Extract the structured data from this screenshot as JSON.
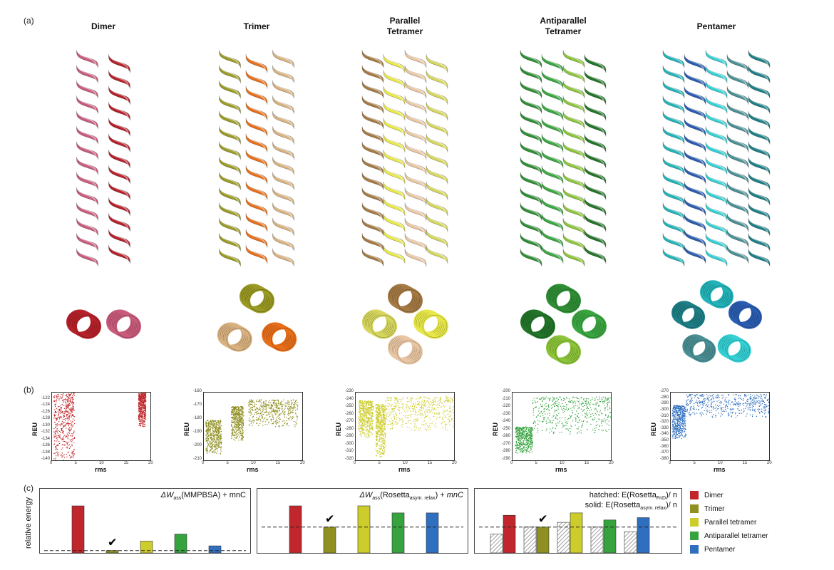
{
  "figure": {
    "panel_a": "(a)",
    "panel_b": "(b)",
    "panel_c": "(c)"
  },
  "structures": [
    {
      "title": "Dimer",
      "colors": [
        "#c95b7c",
        "#b5212a"
      ]
    },
    {
      "title": "Trimer",
      "colors": [
        "#9a9a24",
        "#e86f1a",
        "#d9b280"
      ]
    },
    {
      "title": "Parallel\nTetramer",
      "colors": [
        "#a57a44",
        "#e8e84a",
        "#e9c7a4",
        "#d6d65e"
      ]
    },
    {
      "title": "Antiparallel\nTetramer",
      "colors": [
        "#2f8e35",
        "#3aa640",
        "#8cc43a",
        "#24752a"
      ]
    },
    {
      "title": "Pentamer",
      "colors": [
        "#22b3b8",
        "#2a5cb0",
        "#34d0d4",
        "#4a8f94",
        "#1e7f86"
      ]
    }
  ],
  "scatter_axes": {
    "ylabel": "REU",
    "xlabel": "rms",
    "xticks": [
      "0",
      "5",
      "10",
      "15",
      "20"
    ]
  },
  "chart_data": [
    {
      "type": "scatter",
      "name": "Dimer",
      "color": "#c0262b",
      "xlim": [
        0,
        20
      ],
      "ylim": [
        -140,
        -120
      ],
      "yticks": [
        "-122",
        "-124",
        "-126",
        "-128",
        "-130",
        "-132",
        "-134",
        "-136",
        "-138",
        "-140"
      ],
      "clusters": [
        {
          "x": [
            0.3,
            4.5
          ],
          "y": [
            -140,
            -120
          ]
        },
        {
          "x": [
            17.5,
            19
          ],
          "y": [
            -130,
            -120
          ]
        }
      ]
    },
    {
      "type": "scatter",
      "name": "Trimer",
      "color": "#8f8f22",
      "xlim": [
        0,
        20
      ],
      "ylim": [
        -210,
        -160
      ],
      "yticks": [
        "-160",
        "-170",
        "-180",
        "-190",
        "-200",
        "-210"
      ],
      "clusters": [
        {
          "x": [
            0.3,
            3.5
          ],
          "y": [
            -205,
            -180
          ]
        },
        {
          "x": [
            5.5,
            8
          ],
          "y": [
            -195,
            -170
          ]
        },
        {
          "x": [
            9,
            19
          ],
          "y": [
            -185,
            -165
          ]
        }
      ]
    },
    {
      "type": "scatter",
      "name": "Parallel tetramer",
      "color": "#cccc2a",
      "xlim": [
        0,
        20
      ],
      "ylim": [
        -320,
        -230
      ],
      "yticks": [
        "-230",
        "-240",
        "-250",
        "-260",
        "-270",
        "-280",
        "-290",
        "-300",
        "-310",
        "-320"
      ],
      "clusters": [
        {
          "x": [
            0.5,
            3.5
          ],
          "y": [
            -290,
            -240
          ]
        },
        {
          "x": [
            4,
            6
          ],
          "y": [
            -315,
            -245
          ]
        },
        {
          "x": [
            6,
            20
          ],
          "y": [
            -280,
            -235
          ]
        }
      ]
    },
    {
      "type": "scatter",
      "name": "Antiparallel tetramer",
      "color": "#36a33f",
      "xlim": [
        0,
        20
      ],
      "ylim": [
        -290,
        -200
      ],
      "yticks": [
        "-200",
        "-210",
        "-220",
        "-230",
        "-240",
        "-250",
        "-260",
        "-270",
        "-280",
        "-290"
      ],
      "clusters": [
        {
          "x": [
            0.5,
            4
          ],
          "y": [
            -280,
            -245
          ]
        },
        {
          "x": [
            4,
            20
          ],
          "y": [
            -255,
            -205
          ]
        }
      ]
    },
    {
      "type": "scatter",
      "name": "Pentamer",
      "color": "#2f6fbf",
      "xlim": [
        0,
        20
      ],
      "ylim": [
        -380,
        -270
      ],
      "yticks": [
        "-270",
        "-280",
        "-290",
        "-300",
        "-310",
        "-320",
        "-330",
        "-340",
        "-350",
        "-360",
        "-370",
        "-380"
      ],
      "clusters": [
        {
          "x": [
            0.2,
            3
          ],
          "y": [
            -345,
            -290
          ]
        },
        {
          "x": [
            3,
            20
          ],
          "y": [
            -310,
            -272
          ]
        }
      ]
    },
    {
      "type": "bar",
      "panel": "MMPBSA",
      "categories": [
        "Dimer",
        "Trimer",
        "Parallel tetramer",
        "Antiparallel tetramer",
        "Pentamer"
      ],
      "values": [
        1.0,
        0.05,
        0.25,
        0.4,
        0.15
      ],
      "baseline": 0.05,
      "check": "Trimer"
    },
    {
      "type": "bar",
      "panel": "Rosetta",
      "categories": [
        "Dimer",
        "Trimer",
        "Parallel tetramer",
        "Antiparallel tetramer",
        "Pentamer"
      ],
      "values": [
        1.0,
        0.55,
        1.0,
        0.85,
        0.85
      ],
      "baseline": 0.55,
      "check": "Trimer"
    },
    {
      "type": "bar",
      "panel": "Combined",
      "categories": [
        "Dimer",
        "Trimer",
        "Parallel tetramer",
        "Antiparallel tetramer",
        "Pentamer"
      ],
      "values": [
        0.8,
        0.55,
        0.85,
        0.7,
        0.75
      ],
      "hatched": [
        0.4,
        0.55,
        0.65,
        0.55,
        0.45
      ],
      "baseline": 0.55,
      "check": "Trimer"
    }
  ],
  "bar_ylabel": "relative energy",
  "legend": [
    {
      "label": "Dimer",
      "color": "#c0262b"
    },
    {
      "label": "Trimer",
      "color": "#8f8f22"
    },
    {
      "label": "Parallel tetramer",
      "color": "#cccc2a"
    },
    {
      "label": "Antiparallel tetramer",
      "color": "#36a33f"
    },
    {
      "label": "Pentamer",
      "color": "#2f6fbf"
    }
  ],
  "check_mark": "✔"
}
